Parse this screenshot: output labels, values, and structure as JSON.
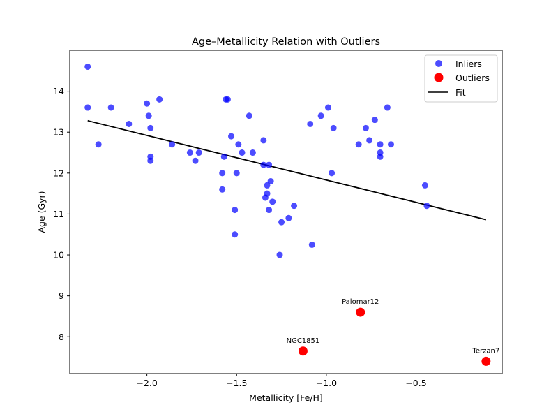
{
  "chart_data": {
    "type": "scatter",
    "title": "Age–Metallicity Relation with Outliers",
    "xlabel": "Metallicity [Fe/H]",
    "ylabel": "Age (Gyr)",
    "xlim": [
      -2.43,
      -0.02
    ],
    "ylim": [
      7.1,
      15.0
    ],
    "xticks": [
      -2.0,
      -1.5,
      -1.0,
      -0.5
    ],
    "xtick_labels": [
      "−2.0",
      "−1.5",
      "−1.0",
      "−0.5"
    ],
    "yticks": [
      8,
      9,
      10,
      11,
      12,
      13,
      14
    ],
    "ytick_labels": [
      "8",
      "9",
      "10",
      "11",
      "12",
      "13",
      "14"
    ],
    "grid": false,
    "legend_position": "top-right",
    "colors": {
      "inliers": "#0000ff",
      "outliers": "#ff0000",
      "fit": "#000000"
    },
    "series": [
      {
        "name": "Inliers",
        "kind": "scatter",
        "points": [
          [
            -2.33,
            14.6
          ],
          [
            -2.33,
            13.6
          ],
          [
            -2.27,
            12.7
          ],
          [
            -2.2,
            13.6
          ],
          [
            -2.1,
            13.2
          ],
          [
            -2.0,
            13.7
          ],
          [
            -1.99,
            13.4
          ],
          [
            -1.98,
            13.1
          ],
          [
            -1.98,
            12.4
          ],
          [
            -1.98,
            12.3
          ],
          [
            -1.93,
            13.8
          ],
          [
            -1.86,
            12.7
          ],
          [
            -1.76,
            12.5
          ],
          [
            -1.73,
            12.3
          ],
          [
            -1.71,
            12.5
          ],
          [
            -1.58,
            12.0
          ],
          [
            -1.58,
            11.6
          ],
          [
            -1.57,
            12.4
          ],
          [
            -1.56,
            13.8
          ],
          [
            -1.55,
            13.8
          ],
          [
            -1.53,
            12.9
          ],
          [
            -1.51,
            11.1
          ],
          [
            -1.51,
            10.5
          ],
          [
            -1.5,
            12.0
          ],
          [
            -1.49,
            12.7
          ],
          [
            -1.47,
            12.5
          ],
          [
            -1.43,
            13.4
          ],
          [
            -1.41,
            12.5
          ],
          [
            -1.35,
            12.8
          ],
          [
            -1.35,
            12.2
          ],
          [
            -1.34,
            11.4
          ],
          [
            -1.33,
            11.7
          ],
          [
            -1.33,
            11.5
          ],
          [
            -1.32,
            12.2
          ],
          [
            -1.32,
            11.1
          ],
          [
            -1.31,
            11.8
          ],
          [
            -1.3,
            11.3
          ],
          [
            -1.26,
            10.0
          ],
          [
            -1.25,
            10.8
          ],
          [
            -1.21,
            10.9
          ],
          [
            -1.18,
            11.2
          ],
          [
            -1.09,
            13.2
          ],
          [
            -1.08,
            10.25
          ],
          [
            -1.03,
            13.4
          ],
          [
            -0.99,
            13.6
          ],
          [
            -0.97,
            12.0
          ],
          [
            -0.96,
            13.1
          ],
          [
            -0.82,
            12.7
          ],
          [
            -0.78,
            13.1
          ],
          [
            -0.76,
            12.8
          ],
          [
            -0.73,
            13.3
          ],
          [
            -0.7,
            12.7
          ],
          [
            -0.7,
            12.5
          ],
          [
            -0.7,
            12.4
          ],
          [
            -0.66,
            13.6
          ],
          [
            -0.64,
            12.7
          ],
          [
            -0.45,
            11.7
          ],
          [
            -0.44,
            11.2
          ]
        ]
      },
      {
        "name": "Outliers",
        "kind": "scatter",
        "points": [
          {
            "x": -1.13,
            "y": 7.65,
            "label": "NGC1851"
          },
          {
            "x": -0.81,
            "y": 8.6,
            "label": "Palomar12"
          },
          {
            "x": -0.11,
            "y": 7.4,
            "label": "Terzan7"
          }
        ]
      },
      {
        "name": "Fit",
        "kind": "line",
        "x": [
          -2.33,
          -0.11
        ],
        "y": [
          13.28,
          10.86
        ]
      }
    ]
  }
}
